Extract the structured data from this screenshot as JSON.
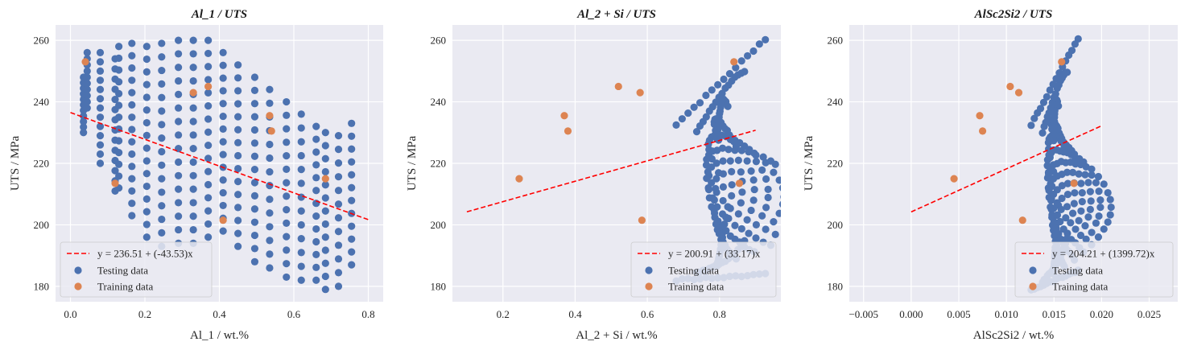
{
  "colors": {
    "background": "#eaeaf2",
    "grid": "#ffffff",
    "testing": "#4c72b0",
    "training": "#dd8452",
    "fit": "#ff0000"
  },
  "chart_data": [
    {
      "type": "scatter",
      "title": "Al_1 / UTS",
      "xlabel": "Al_1 / wt.%",
      "ylabel": "UTS / MPa",
      "xlim": [
        -0.04,
        0.84
      ],
      "ylim": [
        175,
        265
      ],
      "xticks": [
        0.0,
        0.2,
        0.4,
        0.6,
        0.8
      ],
      "xtick_labels": [
        "0.0",
        "0.2",
        "0.4",
        "0.6",
        "0.8"
      ],
      "yticks": [
        180,
        200,
        220,
        240,
        260
      ],
      "ytick_labels": [
        "180",
        "200",
        "220",
        "240",
        "260"
      ],
      "grid": true,
      "legend_placement": "lower-left",
      "fit": {
        "label": "y = 236.51 + (-43.53)x",
        "intercept": 236.51,
        "slope": -43.53,
        "x_range": [
          0.0,
          0.8
        ],
        "style": "dashed"
      },
      "testing": {
        "label": "Testing data",
        "columns": [
          {
            "x": 0.035,
            "y_min": 230,
            "y_max": 248,
            "n": 11
          },
          {
            "x": 0.045,
            "y_min": 238,
            "y_max": 256,
            "n": 10
          },
          {
            "x": 0.08,
            "y_min": 220,
            "y_max": 256,
            "n": 13
          },
          {
            "x": 0.12,
            "y_min": 211,
            "y_max": 254,
            "n": 14
          },
          {
            "x": 0.13,
            "y_min": 212,
            "y_max": 258,
            "n": 13
          },
          {
            "x": 0.165,
            "y_min": 203,
            "y_max": 259,
            "n": 15
          },
          {
            "x": 0.205,
            "y_min": 196,
            "y_max": 258,
            "n": 16
          },
          {
            "x": 0.245,
            "y_min": 193,
            "y_max": 259,
            "n": 16
          },
          {
            "x": 0.29,
            "y_min": 194,
            "y_max": 260,
            "n": 16
          },
          {
            "x": 0.33,
            "y_min": 194,
            "y_max": 260,
            "n": 16
          },
          {
            "x": 0.37,
            "y_min": 196,
            "y_max": 260,
            "n": 16
          },
          {
            "x": 0.41,
            "y_min": 198,
            "y_max": 256,
            "n": 15
          },
          {
            "x": 0.45,
            "y_min": 193,
            "y_max": 252,
            "n": 15
          },
          {
            "x": 0.495,
            "y_min": 188,
            "y_max": 248,
            "n": 15
          },
          {
            "x": 0.535,
            "y_min": 186,
            "y_max": 244,
            "n": 14
          },
          {
            "x": 0.58,
            "y_min": 183,
            "y_max": 240,
            "n": 14
          },
          {
            "x": 0.62,
            "y_min": 182,
            "y_max": 236,
            "n": 13
          },
          {
            "x": 0.66,
            "y_min": 182,
            "y_max": 232,
            "n": 13
          },
          {
            "x": 0.685,
            "y_min": 179,
            "y_max": 230,
            "n": 13
          },
          {
            "x": 0.72,
            "y_min": 180,
            "y_max": 229,
            "n": 12
          },
          {
            "x": 0.755,
            "y_min": 187,
            "y_max": 233,
            "n": 12
          }
        ]
      },
      "training": {
        "label": "Training data",
        "x": [
          0.04,
          0.12,
          0.33,
          0.37,
          0.41,
          0.535,
          0.54,
          0.685
        ],
        "y": [
          253,
          213.5,
          243,
          245,
          201.5,
          235.5,
          230.5,
          215
        ]
      }
    },
    {
      "type": "scatter",
      "title": "Al_2 + Si / UTS",
      "xlabel": "Al_2 + Si / wt.%",
      "ylabel": "UTS / MPa",
      "xlim": [
        0.06,
        0.97
      ],
      "ylim": [
        175,
        265
      ],
      "xticks": [
        0.2,
        0.4,
        0.6,
        0.8
      ],
      "xtick_labels": [
        "0.2",
        "0.4",
        "0.6",
        "0.8"
      ],
      "yticks": [
        180,
        200,
        220,
        240,
        260
      ],
      "ytick_labels": [
        "180",
        "200",
        "220",
        "240",
        "260"
      ],
      "grid": true,
      "legend_placement": "lower-right",
      "fit": {
        "label": "y = 200.91 + (33.17)x",
        "intercept": 200.91,
        "slope": 33.17,
        "x_range": [
          0.1,
          0.9
        ],
        "style": "dashed"
      },
      "testing": {
        "label": "Testing data",
        "fan": {
          "y_top": 260.5,
          "y_bottom": 178,
          "apex_x": 0.53,
          "rows": 16,
          "x_left_mid": 0.15,
          "x_right_mid": 0.93,
          "y_mid": 232
        }
      },
      "training": {
        "label": "Training data",
        "x": [
          0.245,
          0.37,
          0.38,
          0.52,
          0.58,
          0.585,
          0.84,
          0.855
        ],
        "y": [
          215,
          235.5,
          230.5,
          245,
          243,
          201.5,
          253,
          213.5
        ]
      }
    },
    {
      "type": "scatter",
      "title": "AlSc2Si2 / UTS",
      "xlabel": "AlSc2Si2 / wt.%",
      "ylabel": "UTS / MPa",
      "xlim": [
        -0.0065,
        0.028
      ],
      "ylim": [
        175,
        265
      ],
      "xticks": [
        -0.005,
        0.0,
        0.005,
        0.01,
        0.015,
        0.02,
        0.025
      ],
      "xtick_labels": [
        "−0.005",
        "0.000",
        "0.005",
        "0.010",
        "0.015",
        "0.020",
        "0.025"
      ],
      "yticks": [
        180,
        200,
        220,
        240,
        260
      ],
      "ytick_labels": [
        "180",
        "200",
        "220",
        "240",
        "260"
      ],
      "grid": true,
      "legend_placement": "lower-right",
      "fit": {
        "label": "y = 204.21 + (1399.72)x",
        "intercept": 204.21,
        "slope": 1399.72,
        "x_range": [
          0.0,
          0.02
        ],
        "style": "dashed"
      },
      "testing": {
        "label": "Testing data",
        "fan": {
          "y_top": 260.5,
          "y_bottom": 179,
          "apex_x": 0.0101,
          "rows": 16,
          "x_left_mid": 0.0025,
          "x_right_mid": 0.0185,
          "y_mid": 231,
          "narrow": true
        }
      },
      "training": {
        "label": "Training data",
        "x": [
          0.0045,
          0.0072,
          0.0075,
          0.0104,
          0.0113,
          0.0117,
          0.0158,
          0.0171
        ],
        "y": [
          215,
          235.5,
          230.5,
          245,
          243,
          201.5,
          253,
          213.5
        ]
      }
    }
  ]
}
